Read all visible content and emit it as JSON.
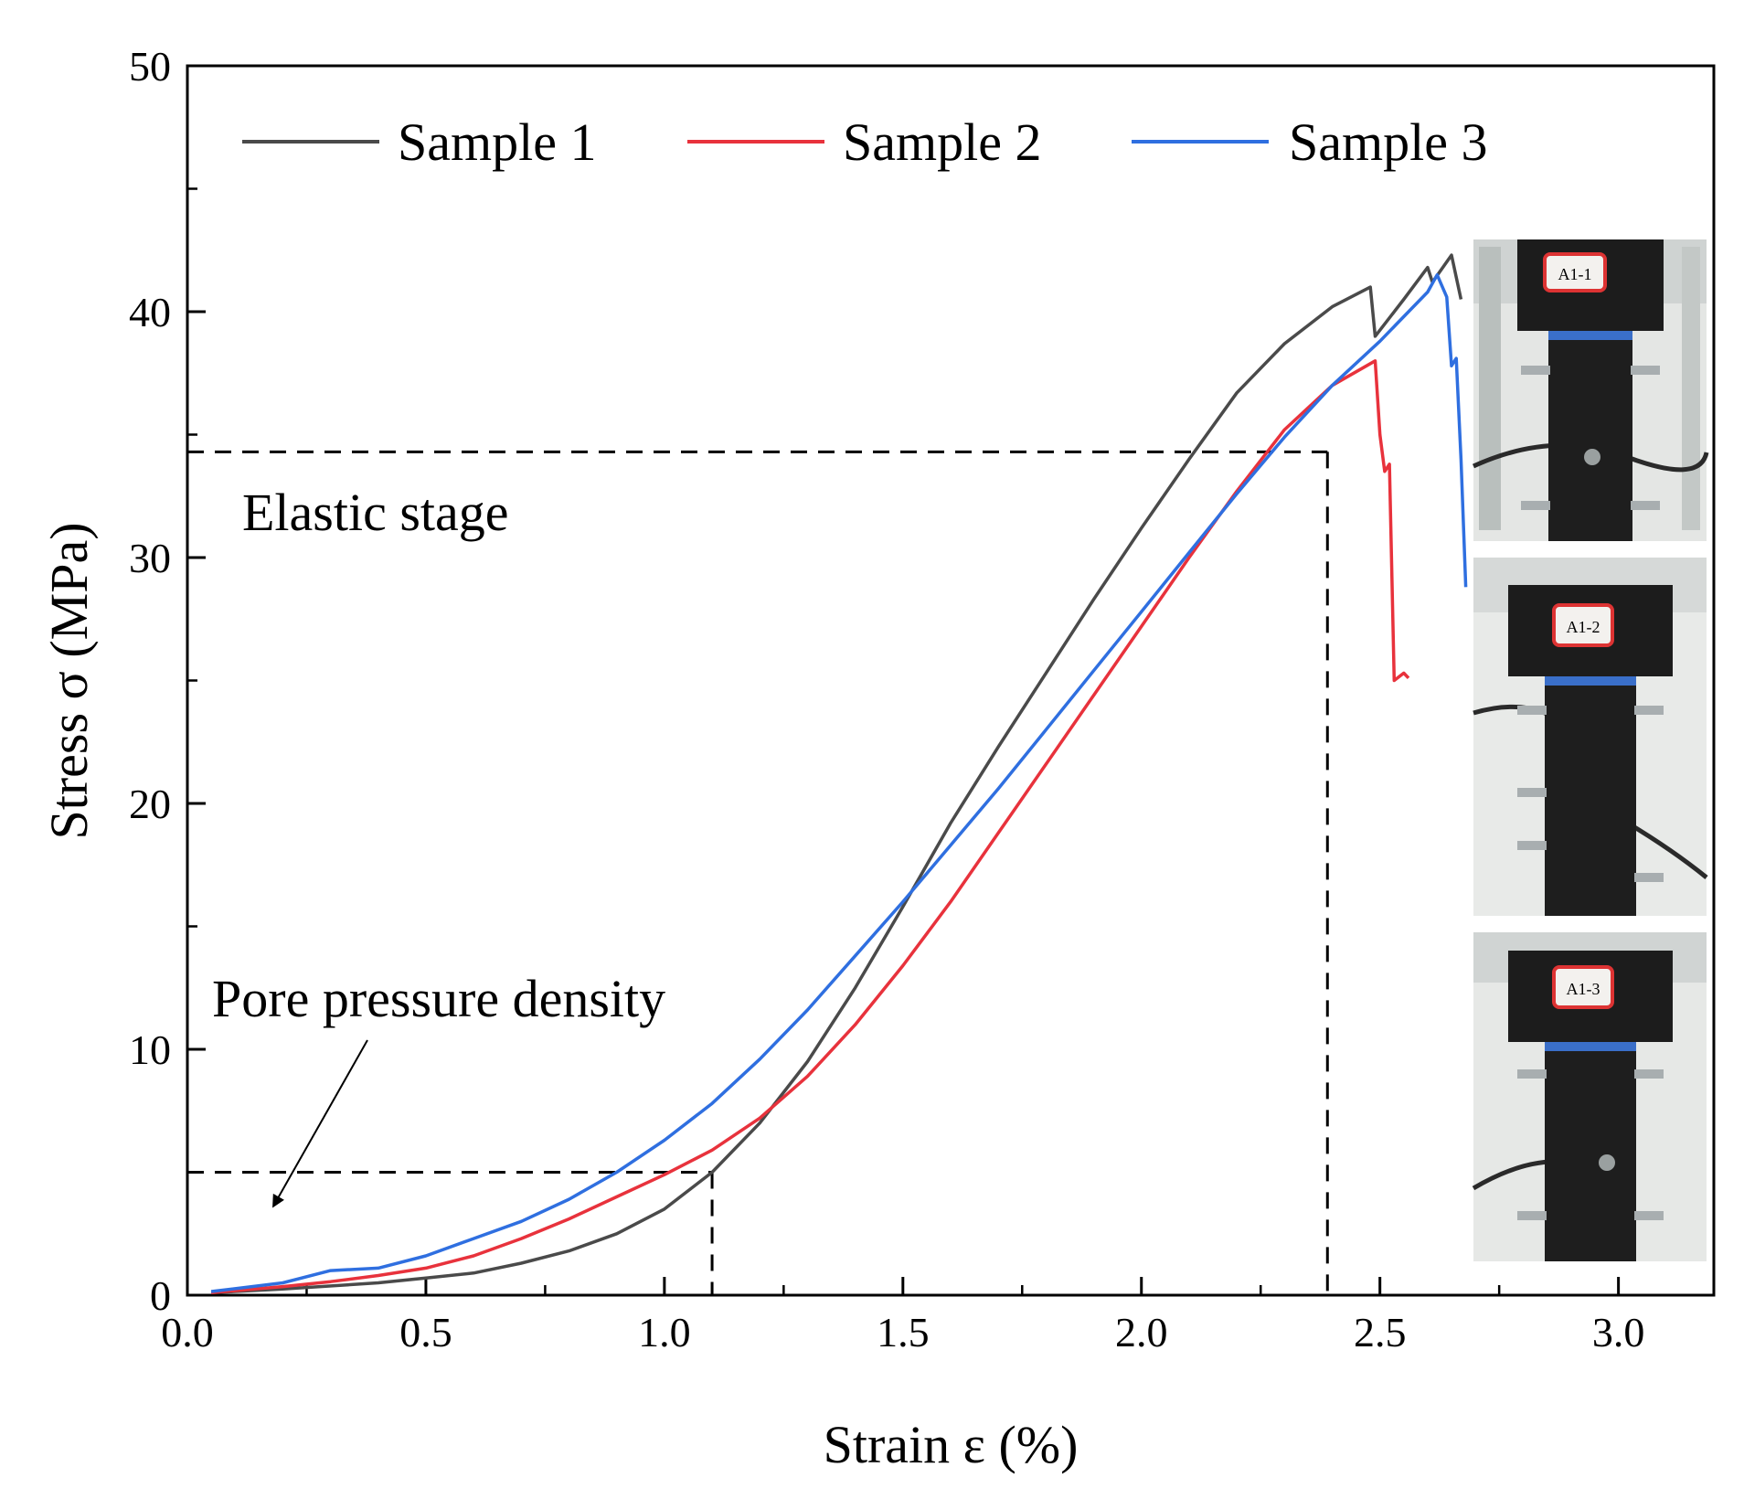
{
  "chart_data": {
    "type": "line",
    "title": "",
    "xlabel": "Strain ε (%)",
    "ylabel": "Stress σ  (MPa)",
    "xlim": [
      0,
      3.2
    ],
    "ylim": [
      0,
      50
    ],
    "x_ticks": [
      0.0,
      0.5,
      1.0,
      1.5,
      2.0,
      2.5,
      3.0
    ],
    "x_tick_labels": [
      "0.0",
      "0.5",
      "1.0",
      "1.5",
      "2.0",
      "2.5",
      "3.0"
    ],
    "y_ticks": [
      0,
      10,
      20,
      30,
      40,
      50
    ],
    "y_tick_labels": [
      "0",
      "10",
      "20",
      "30",
      "40",
      "50"
    ],
    "grid": false,
    "legend_position": "top",
    "series": [
      {
        "name": "Sample 1",
        "color": "#4a4a4a",
        "points": [
          [
            0.05,
            0.1
          ],
          [
            0.2,
            0.25
          ],
          [
            0.4,
            0.5
          ],
          [
            0.5,
            0.7
          ],
          [
            0.6,
            0.9
          ],
          [
            0.7,
            1.3
          ],
          [
            0.8,
            1.8
          ],
          [
            0.9,
            2.5
          ],
          [
            1.0,
            3.5
          ],
          [
            1.1,
            5.0
          ],
          [
            1.2,
            7.0
          ],
          [
            1.3,
            9.5
          ],
          [
            1.4,
            12.5
          ],
          [
            1.5,
            15.8
          ],
          [
            1.6,
            19.2
          ],
          [
            1.7,
            22.3
          ],
          [
            1.8,
            25.3
          ],
          [
            1.9,
            28.3
          ],
          [
            2.0,
            31.2
          ],
          [
            2.1,
            34.0
          ],
          [
            2.2,
            36.7
          ],
          [
            2.3,
            38.7
          ],
          [
            2.4,
            40.2
          ],
          [
            2.48,
            41.0
          ],
          [
            2.49,
            39.0
          ],
          [
            2.55,
            40.5
          ],
          [
            2.6,
            41.8
          ],
          [
            2.61,
            41.2
          ],
          [
            2.65,
            42.3
          ],
          [
            2.67,
            40.5
          ]
        ]
      },
      {
        "name": "Sample 2",
        "color": "#e8323c",
        "points": [
          [
            0.05,
            0.1
          ],
          [
            0.2,
            0.35
          ],
          [
            0.3,
            0.55
          ],
          [
            0.4,
            0.8
          ],
          [
            0.5,
            1.1
          ],
          [
            0.6,
            1.6
          ],
          [
            0.7,
            2.3
          ],
          [
            0.8,
            3.1
          ],
          [
            0.9,
            4.0
          ],
          [
            1.0,
            4.9
          ],
          [
            1.1,
            5.9
          ],
          [
            1.2,
            7.2
          ],
          [
            1.3,
            8.9
          ],
          [
            1.4,
            11.0
          ],
          [
            1.5,
            13.4
          ],
          [
            1.6,
            16.0
          ],
          [
            1.7,
            18.8
          ],
          [
            1.8,
            21.6
          ],
          [
            1.9,
            24.4
          ],
          [
            2.0,
            27.2
          ],
          [
            2.1,
            30.0
          ],
          [
            2.2,
            32.7
          ],
          [
            2.3,
            35.2
          ],
          [
            2.4,
            37.0
          ],
          [
            2.49,
            38.0
          ],
          [
            2.5,
            35.0
          ],
          [
            2.51,
            33.5
          ],
          [
            2.52,
            33.8
          ],
          [
            2.53,
            25.0
          ],
          [
            2.55,
            25.3
          ],
          [
            2.56,
            25.1
          ]
        ]
      },
      {
        "name": "Sample 3",
        "color": "#2f6fe0",
        "points": [
          [
            0.05,
            0.15
          ],
          [
            0.2,
            0.5
          ],
          [
            0.3,
            1.0
          ],
          [
            0.4,
            1.1
          ],
          [
            0.5,
            1.6
          ],
          [
            0.6,
            2.3
          ],
          [
            0.7,
            3.0
          ],
          [
            0.8,
            3.9
          ],
          [
            0.9,
            5.0
          ],
          [
            1.0,
            6.3
          ],
          [
            1.1,
            7.8
          ],
          [
            1.2,
            9.6
          ],
          [
            1.3,
            11.6
          ],
          [
            1.4,
            13.8
          ],
          [
            1.5,
            16.0
          ],
          [
            1.6,
            18.3
          ],
          [
            1.7,
            20.6
          ],
          [
            1.8,
            23.0
          ],
          [
            1.9,
            25.4
          ],
          [
            2.0,
            27.8
          ],
          [
            2.1,
            30.2
          ],
          [
            2.2,
            32.6
          ],
          [
            2.3,
            34.9
          ],
          [
            2.4,
            37.0
          ],
          [
            2.5,
            38.8
          ],
          [
            2.55,
            39.8
          ],
          [
            2.6,
            40.8
          ],
          [
            2.62,
            41.5
          ],
          [
            2.64,
            40.6
          ],
          [
            2.65,
            37.8
          ],
          [
            2.66,
            38.1
          ],
          [
            2.67,
            34.0
          ],
          [
            2.68,
            28.8
          ]
        ]
      }
    ],
    "reference_lines": [
      {
        "name": "pore-pressure-threshold",
        "y": 5.0,
        "x_end": 1.1
      },
      {
        "name": "elastic-threshold",
        "y": 34.3,
        "x_end": 2.39
      }
    ],
    "annotations": [
      {
        "text": "Elastic stage",
        "anchor_x": 0.13,
        "anchor_y": 31.5
      },
      {
        "text": "Pore pressure density",
        "anchor_x": 0.07,
        "anchor_y": 11.8,
        "arrow_to_x": 0.17,
        "arrow_to_y": 3.6
      }
    ],
    "inset_photos": [
      {
        "name": "specimen-photo-1",
        "label_text": "A1-1"
      },
      {
        "name": "specimen-photo-2",
        "label_text": "A1-2"
      },
      {
        "name": "specimen-photo-3",
        "label_text": "A1-3"
      }
    ]
  }
}
